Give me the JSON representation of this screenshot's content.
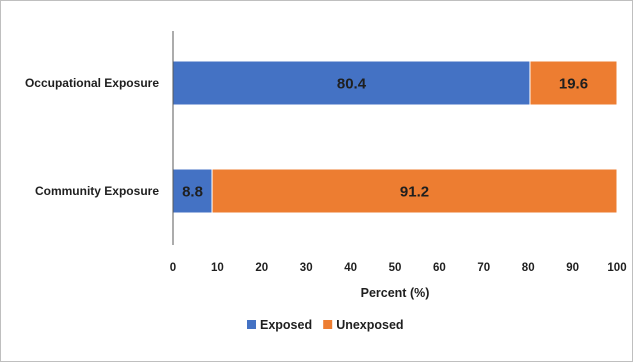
{
  "chart_data": {
    "type": "bar",
    "orientation": "horizontal",
    "stacked": true,
    "categories": [
      "Occupational Exposure",
      "Community Exposure"
    ],
    "series": [
      {
        "name": "Exposed",
        "values": [
          80.4,
          8.8
        ],
        "color": "#4472C4"
      },
      {
        "name": "Unexposed",
        "values": [
          19.6,
          91.2
        ],
        "color": "#ED7D31"
      }
    ],
    "xlabel": "Percent (%)",
    "ylabel": "",
    "xlim": [
      0,
      100
    ],
    "xticks": [
      0,
      10,
      20,
      30,
      40,
      50,
      60,
      70,
      80,
      90,
      100
    ],
    "grid": false,
    "legend_position": "bottom"
  }
}
